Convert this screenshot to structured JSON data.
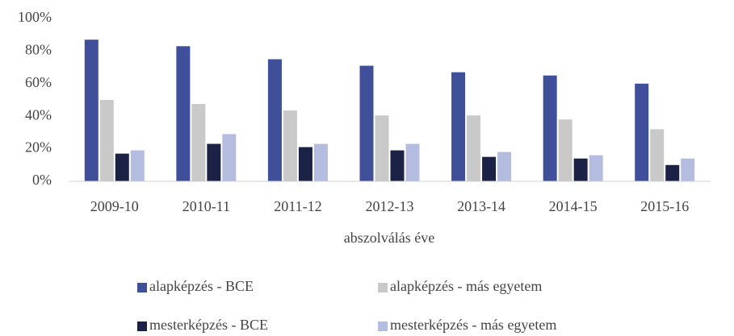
{
  "chart_data": {
    "type": "bar",
    "x_label": "abszolválás éve",
    "categories": [
      "2009-10",
      "2010-11",
      "2011-12",
      "2012-13",
      "2013-14",
      "2014-15",
      "2015-16"
    ],
    "series": [
      {
        "name": "alapképzés - BCE",
        "color": "#3f4f9a",
        "values": [
          87,
          83,
          75,
          71,
          67,
          65,
          60
        ]
      },
      {
        "name": "alapképzés - más egyetem",
        "color": "#c9c9c9",
        "values": [
          50,
          47.5,
          43.5,
          40.5,
          40.5,
          38,
          32
        ]
      },
      {
        "name": "mesterképzés - BCE",
        "color": "#1c2245",
        "values": [
          17,
          23,
          21,
          19,
          15,
          14,
          10
        ]
      },
      {
        "name": "mesterképzés - más egyetem",
        "color": "#b4bce0",
        "values": [
          19,
          29,
          23,
          23,
          18,
          16,
          14
        ]
      }
    ],
    "ylim": [
      0,
      100
    ],
    "yticks": [
      {
        "value": 0,
        "label": "0%"
      },
      {
        "value": 20,
        "label": "20%"
      },
      {
        "value": 40,
        "label": "40%"
      },
      {
        "value": 60,
        "label": "60%"
      },
      {
        "value": 80,
        "label": "80%"
      },
      {
        "value": 100,
        "label": "100%"
      }
    ],
    "grid": false,
    "legend": "bottom"
  }
}
